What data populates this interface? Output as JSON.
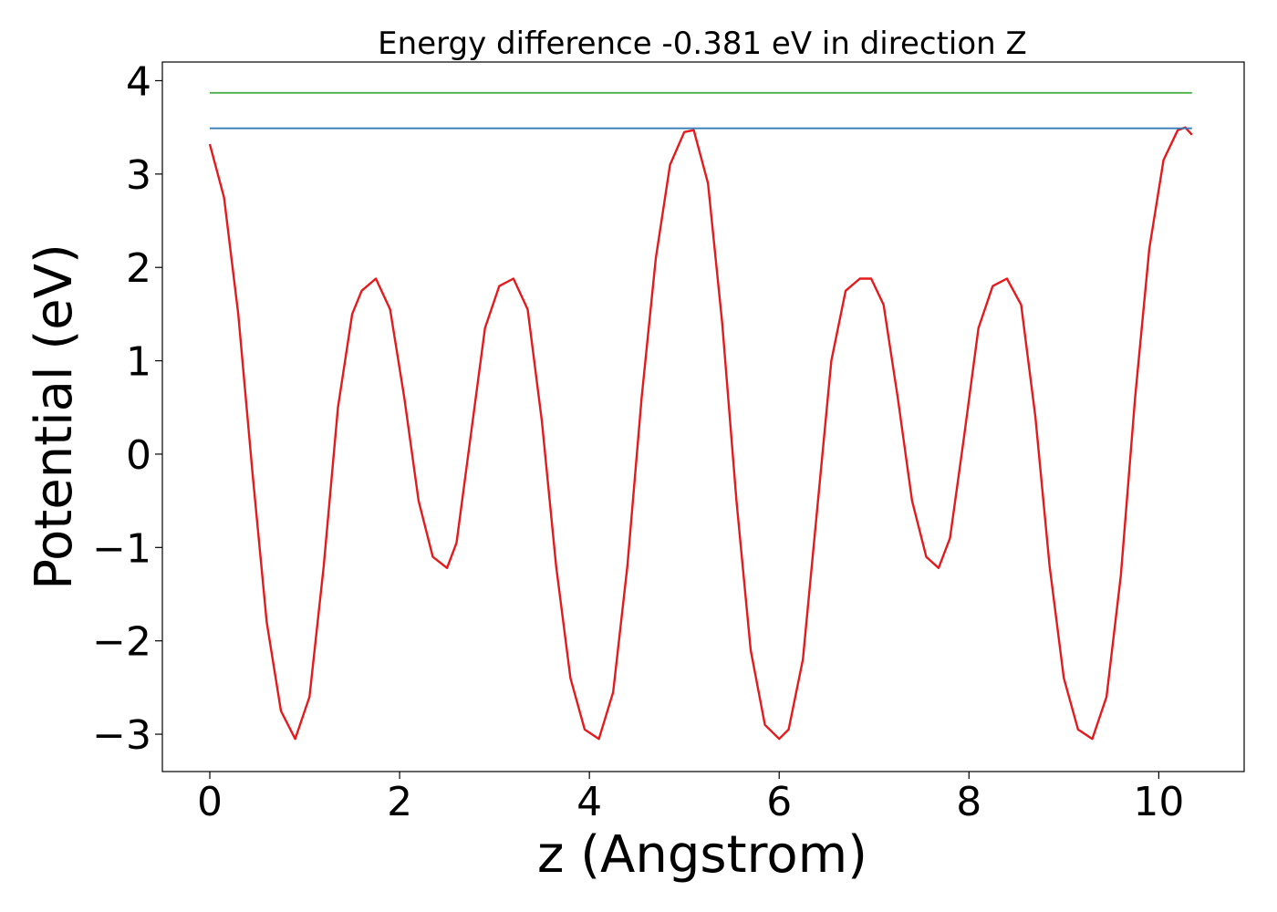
{
  "chart_data": {
    "type": "line",
    "title": "Energy difference -0.381 eV in direction Z",
    "xlabel": "z (Angstrom)",
    "ylabel": "Potential (eV)",
    "xlim": [
      -0.5,
      10.9
    ],
    "ylim": [
      -3.4,
      4.2
    ],
    "xticks": [
      0,
      2,
      4,
      6,
      8,
      10
    ],
    "xtick_labels": [
      "0",
      "2",
      "4",
      "6",
      "8",
      "10"
    ],
    "yticks": [
      -3,
      -2,
      -1,
      0,
      1,
      2,
      3,
      4
    ],
    "ytick_labels": [
      "−3",
      "−2",
      "−1",
      "0",
      "1",
      "2",
      "3",
      "4"
    ],
    "grid": false,
    "series": [
      {
        "color": "#e41a1c",
        "x": [
          0.0,
          0.15,
          0.3,
          0.45,
          0.6,
          0.75,
          0.9,
          1.05,
          1.2,
          1.35,
          1.5,
          1.6,
          1.75,
          1.9,
          2.05,
          2.2,
          2.35,
          2.5,
          2.6,
          2.75,
          2.9,
          3.05,
          3.2,
          3.35,
          3.5,
          3.65,
          3.8,
          3.95,
          4.1,
          4.25,
          4.4,
          4.55,
          4.7,
          4.85,
          5.0,
          5.1,
          5.25,
          5.4,
          5.55,
          5.7,
          5.85,
          6.0,
          6.1,
          6.25,
          6.4,
          6.55,
          6.7,
          6.85,
          6.97,
          7.1,
          7.25,
          7.4,
          7.55,
          7.68,
          7.8,
          7.95,
          8.1,
          8.25,
          8.4,
          8.55,
          8.7,
          8.85,
          9.0,
          9.15,
          9.3,
          9.45,
          9.6,
          9.75,
          9.9,
          10.05,
          10.2,
          10.28,
          10.35
        ],
        "y": [
          3.32,
          2.75,
          1.5,
          -0.2,
          -1.8,
          -2.75,
          -3.05,
          -2.6,
          -1.2,
          0.5,
          1.5,
          1.75,
          1.88,
          1.55,
          0.6,
          -0.5,
          -1.1,
          -1.22,
          -0.95,
          0.2,
          1.35,
          1.8,
          1.88,
          1.55,
          0.35,
          -1.2,
          -2.4,
          -2.95,
          -3.05,
          -2.55,
          -1.2,
          0.6,
          2.1,
          3.1,
          3.45,
          3.47,
          2.9,
          1.4,
          -0.5,
          -2.1,
          -2.9,
          -3.05,
          -2.95,
          -2.2,
          -0.6,
          1.0,
          1.75,
          1.88,
          1.88,
          1.6,
          0.6,
          -0.5,
          -1.1,
          -1.22,
          -0.9,
          0.2,
          1.35,
          1.8,
          1.88,
          1.6,
          0.4,
          -1.2,
          -2.4,
          -2.95,
          -3.05,
          -2.6,
          -1.3,
          0.6,
          2.2,
          3.15,
          3.47,
          3.5,
          3.42
        ]
      },
      {
        "color": "#377eb8",
        "x": [
          0.0,
          10.35
        ],
        "y": [
          3.49,
          3.49
        ]
      },
      {
        "color": "#4daf4a",
        "x": [
          0.0,
          10.35
        ],
        "y": [
          3.87,
          3.87
        ]
      }
    ]
  }
}
